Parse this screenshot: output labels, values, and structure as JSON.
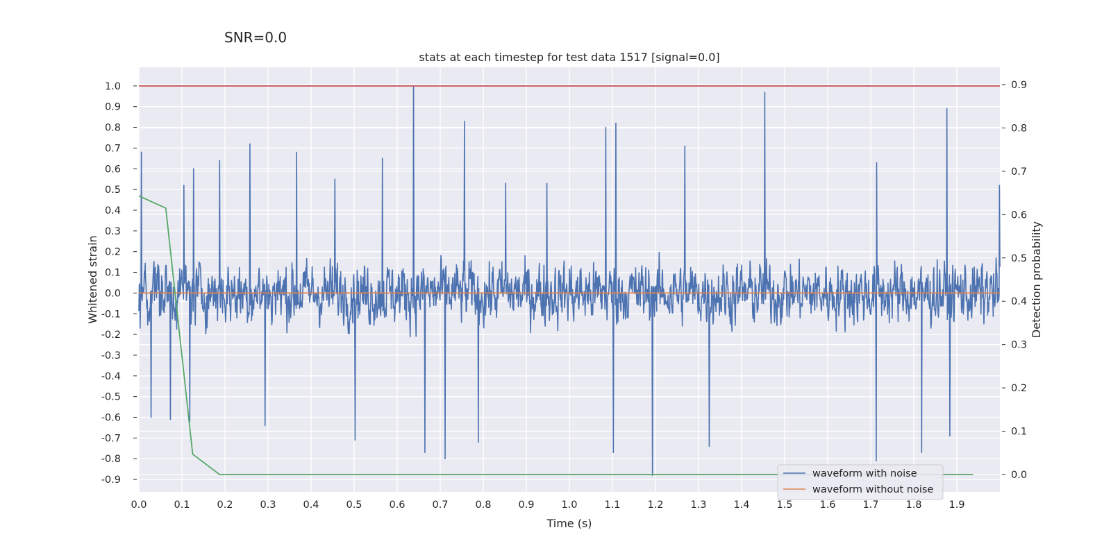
{
  "suptitle": "SNR=0.0",
  "chart_data": {
    "type": "line",
    "title": "stats at each timestep for test data 1517 [signal=0.0]",
    "xlabel": "Time (s)",
    "ylabel": "Whitened strain",
    "y2label": "Detection probability",
    "xlim": [
      0.0,
      2.0
    ],
    "ylim": [
      -0.96,
      1.09
    ],
    "y2lim": [
      -0.04,
      0.94
    ],
    "x_ticks": [
      "0.0",
      "0.1",
      "0.2",
      "0.3",
      "0.4",
      "0.5",
      "0.6",
      "0.7",
      "0.8",
      "0.9",
      "1.0",
      "1.1",
      "1.2",
      "1.3",
      "1.4",
      "1.5",
      "1.6",
      "1.7",
      "1.8",
      "1.9"
    ],
    "y_ticks": [
      "1.0",
      "0.9",
      "0.8",
      "0.7",
      "0.6",
      "0.5",
      "0.4",
      "0.3",
      "0.2",
      "0.1",
      "0.0",
      "-0.1",
      "-0.2",
      "-0.3",
      "-0.4",
      "-0.5",
      "-0.6",
      "-0.7",
      "-0.8",
      "-0.9"
    ],
    "y2_ticks": [
      "0.9",
      "0.8",
      "0.7",
      "0.6",
      "0.5",
      "0.4",
      "0.3",
      "0.2",
      "0.1",
      "0.0"
    ],
    "grid": true,
    "legend_position": "lower-right",
    "series": [
      {
        "name": "waveform with noise",
        "axis": "left",
        "color": "#4c72b0",
        "x_range": [
          0.0,
          2.0
        ],
        "n_samples": 2048,
        "amplitude_min": -0.88,
        "amplitude_max": 1.0,
        "peaks": [
          {
            "x": 0.006,
            "y": 0.68
          },
          {
            "x": 0.105,
            "y": 0.52
          },
          {
            "x": 0.127,
            "y": 0.6
          },
          {
            "x": 0.188,
            "y": 0.64
          },
          {
            "x": 0.258,
            "y": 0.72
          },
          {
            "x": 0.366,
            "y": 0.68
          },
          {
            "x": 0.455,
            "y": 0.55
          },
          {
            "x": 0.566,
            "y": 0.65
          },
          {
            "x": 0.638,
            "y": 1.0
          },
          {
            "x": 0.756,
            "y": 0.83
          },
          {
            "x": 0.852,
            "y": 0.53
          },
          {
            "x": 0.948,
            "y": 0.53
          },
          {
            "x": 1.085,
            "y": 0.8
          },
          {
            "x": 1.108,
            "y": 0.82
          },
          {
            "x": 1.268,
            "y": 0.71
          },
          {
            "x": 1.454,
            "y": 0.97
          },
          {
            "x": 1.714,
            "y": 0.63
          },
          {
            "x": 1.877,
            "y": 0.89
          },
          {
            "x": 1.999,
            "y": 0.52
          }
        ],
        "troughs": [
          {
            "x": 0.028,
            "y": -0.6
          },
          {
            "x": 0.073,
            "y": -0.61
          },
          {
            "x": 0.118,
            "y": -0.62
          },
          {
            "x": 0.293,
            "y": -0.64
          },
          {
            "x": 0.502,
            "y": -0.71
          },
          {
            "x": 0.664,
            "y": -0.77
          },
          {
            "x": 0.711,
            "y": -0.8
          },
          {
            "x": 0.788,
            "y": -0.72
          },
          {
            "x": 1.102,
            "y": -0.77
          },
          {
            "x": 1.193,
            "y": -0.88
          },
          {
            "x": 1.325,
            "y": -0.74
          },
          {
            "x": 1.713,
            "y": -0.81
          },
          {
            "x": 1.818,
            "y": -0.77
          },
          {
            "x": 1.884,
            "y": -0.69
          }
        ]
      },
      {
        "name": "waveform without noise",
        "axis": "left",
        "color": "#dd8452",
        "x": [
          0.0,
          2.0
        ],
        "y": [
          0.0,
          0.0
        ]
      },
      {
        "axis": "right",
        "color": "#55a868",
        "x": [
          0.0,
          0.0625,
          0.125,
          0.1875,
          0.25,
          1.9375
        ],
        "y": [
          0.643,
          0.615,
          0.047,
          0.0,
          0.0,
          0.0
        ]
      },
      {
        "axis": "left",
        "color": "#c44e52",
        "x": [
          0.0,
          2.0
        ],
        "y": [
          1.0,
          1.0
        ]
      }
    ]
  }
}
